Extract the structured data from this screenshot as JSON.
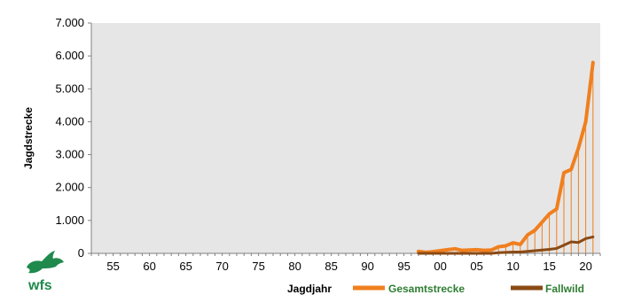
{
  "logo": {
    "text": "wfs"
  },
  "colors": {
    "plot_background": "#e6e6e6",
    "gesamtstrecke": "#f07f1e",
    "fallwild": "#8a4a14",
    "logo": "#1f8a4c",
    "legend_text": "#2e7d32"
  },
  "chart_data": {
    "type": "line",
    "xlabel": "Jagdjahr",
    "ylabel": "Jagdstrecke",
    "xlim": [
      1952,
      2022
    ],
    "ylim": [
      0,
      7000
    ],
    "grid": false,
    "legend_position": "bottom",
    "y_ticks": [
      {
        "value": 0,
        "label": "0"
      },
      {
        "value": 1000,
        "label": "1.000"
      },
      {
        "value": 2000,
        "label": "2.000"
      },
      {
        "value": 3000,
        "label": "3.000"
      },
      {
        "value": 4000,
        "label": "4.000"
      },
      {
        "value": 5000,
        "label": "5.000"
      },
      {
        "value": 6000,
        "label": "6.000"
      },
      {
        "value": 7000,
        "label": "7.000"
      }
    ],
    "x_ticks": [
      {
        "value": 1955,
        "label": "55"
      },
      {
        "value": 1960,
        "label": "60"
      },
      {
        "value": 1965,
        "label": "65"
      },
      {
        "value": 1970,
        "label": "70"
      },
      {
        "value": 1975,
        "label": "75"
      },
      {
        "value": 1980,
        "label": "80"
      },
      {
        "value": 1985,
        "label": "85"
      },
      {
        "value": 1990,
        "label": "90"
      },
      {
        "value": 1995,
        "label": "95"
      },
      {
        "value": 2000,
        "label": "00"
      },
      {
        "value": 2005,
        "label": "05"
      },
      {
        "value": 2010,
        "label": "10"
      },
      {
        "value": 2015,
        "label": "15"
      },
      {
        "value": 2020,
        "label": "20"
      }
    ],
    "x": [
      1997,
      1998,
      1999,
      2000,
      2001,
      2002,
      2003,
      2004,
      2005,
      2006,
      2007,
      2008,
      2009,
      2010,
      2011,
      2012,
      2013,
      2014,
      2015,
      2016,
      2017,
      2018,
      2019,
      2020,
      2021
    ],
    "series": [
      {
        "name": "Gesamtstrecke",
        "values": [
          60,
          30,
          50,
          80,
          110,
          140,
          90,
          100,
          110,
          90,
          100,
          200,
          230,
          320,
          270,
          560,
          700,
          950,
          1200,
          1350,
          2450,
          2550,
          3200,
          4000,
          5800
        ]
      },
      {
        "name": "Fallwild",
        "values": [
          0,
          0,
          0,
          0,
          0,
          0,
          0,
          0,
          0,
          0,
          0,
          20,
          30,
          40,
          40,
          60,
          80,
          100,
          120,
          150,
          250,
          350,
          330,
          450,
          500
        ]
      }
    ]
  }
}
